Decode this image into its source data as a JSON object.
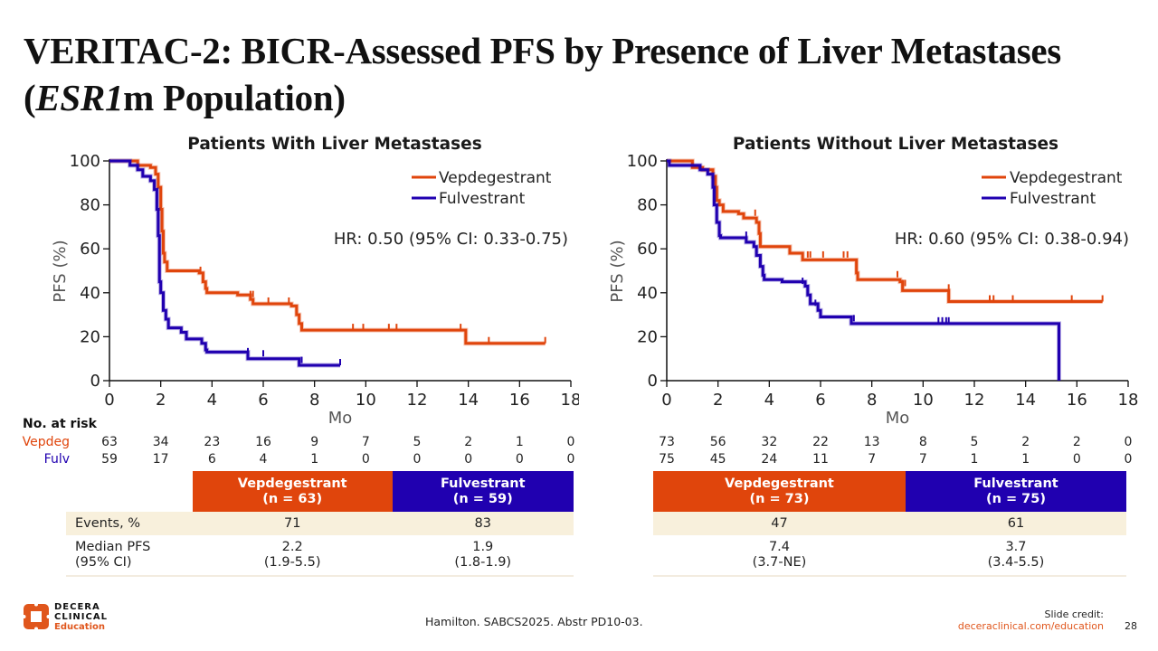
{
  "slide": {
    "title_part1": "VERITAC-2: BICR-Assessed PFS by Presence of Liver Metastases",
    "title_paren_open": "(",
    "title_italic": "ESR1",
    "title_part2": "m Population)",
    "citation": "Hamilton. SABCS2025. Abstr PD10-03.",
    "credit_label": "Slide credit:",
    "credit_link": "deceraclinical.com/education",
    "page_number": "28",
    "logo": {
      "line1": "DECERA",
      "line2": "CLINICAL",
      "line3": "Education"
    }
  },
  "colors": {
    "vepdegestrant": "#e0450c",
    "fulvestrant": "#2000b0",
    "events_row_bg": "#f8f0dc"
  },
  "risk_table": {
    "heading": "No. at risk",
    "vep_label": "Vepdeg",
    "fulv_label": "Fulv"
  },
  "chart_data": [
    {
      "type": "line",
      "subtype": "kaplan-meier",
      "title": "Patients With Liver Metastases",
      "xlabel": "Mo",
      "ylabel": "PFS (%)",
      "xlim": [
        0,
        18
      ],
      "ylim": [
        0,
        100
      ],
      "xticks": [
        "0",
        "2",
        "4",
        "6",
        "8",
        "10",
        "12",
        "14",
        "16",
        "18"
      ],
      "yticks": [
        "0",
        "20",
        "40",
        "60",
        "80",
        "100"
      ],
      "legend": [
        "Vepdegestrant",
        "Fulvestrant"
      ],
      "legend_position": "top-right",
      "annotation": "HR: 0.50 (95% CI: 0.33-0.75)",
      "series": [
        {
          "name": "Vepdegestrant",
          "steps": [
            [
              0,
              100
            ],
            [
              1.1,
              98
            ],
            [
              1.6,
              97
            ],
            [
              1.8,
              94
            ],
            [
              1.9,
              88
            ],
            [
              2.0,
              78
            ],
            [
              2.05,
              68
            ],
            [
              2.1,
              58
            ],
            [
              2.15,
              54
            ],
            [
              2.25,
              50
            ],
            [
              3.5,
              49
            ],
            [
              3.65,
              45
            ],
            [
              3.75,
              42
            ],
            [
              3.8,
              40
            ],
            [
              5.0,
              39
            ],
            [
              5.5,
              37
            ],
            [
              5.6,
              35
            ],
            [
              7.1,
              34
            ],
            [
              7.3,
              30
            ],
            [
              7.4,
              26
            ],
            [
              7.5,
              23
            ],
            [
              13.9,
              17
            ],
            [
              17.0,
              17
            ]
          ],
          "censor": [
            [
              3.55,
              49
            ],
            [
              5.5,
              38
            ],
            [
              5.6,
              38
            ],
            [
              6.2,
              35
            ],
            [
              7.0,
              35
            ],
            [
              9.5,
              23
            ],
            [
              9.9,
              23
            ],
            [
              10.9,
              23
            ],
            [
              11.2,
              23
            ],
            [
              13.7,
              23
            ],
            [
              14.8,
              17
            ],
            [
              17.0,
              17
            ]
          ]
        },
        {
          "name": "Fulvestrant",
          "steps": [
            [
              0,
              100
            ],
            [
              0.8,
              98
            ],
            [
              1.1,
              96
            ],
            [
              1.3,
              93
            ],
            [
              1.6,
              91
            ],
            [
              1.75,
              87
            ],
            [
              1.85,
              78
            ],
            [
              1.9,
              66
            ],
            [
              1.95,
              45
            ],
            [
              2.0,
              40
            ],
            [
              2.1,
              32
            ],
            [
              2.2,
              28
            ],
            [
              2.3,
              24
            ],
            [
              2.8,
              22
            ],
            [
              3.0,
              19
            ],
            [
              3.6,
              17
            ],
            [
              3.75,
              14
            ],
            [
              3.8,
              13
            ],
            [
              5.4,
              10
            ],
            [
              7.4,
              7
            ],
            [
              9.0,
              7
            ]
          ],
          "censor": [
            [
              5.4,
              12
            ],
            [
              6.0,
              11
            ],
            [
              7.5,
              8
            ],
            [
              9.0,
              7
            ]
          ]
        }
      ],
      "at_risk": {
        "times": [
          0,
          2,
          4,
          6,
          8,
          10,
          12,
          14,
          16,
          18
        ],
        "Vepdegestrant": [
          63,
          34,
          23,
          16,
          9,
          7,
          5,
          2,
          1,
          0
        ],
        "Fulvestrant": [
          59,
          17,
          6,
          4,
          1,
          0,
          0,
          0,
          0,
          0
        ]
      },
      "summary_table": {
        "headers": [
          {
            "arm": "Vepdegestrant",
            "n": "(n = 63)"
          },
          {
            "arm": "Fulvestrant",
            "n": "(n = 59)"
          }
        ],
        "rows": [
          {
            "label": "Events, %",
            "label2": "",
            "values": [
              "71",
              "83"
            ],
            "values2": [
              "",
              ""
            ]
          },
          {
            "label": "Median PFS",
            "label2": "(95% CI)",
            "values": [
              "2.2",
              "1.9"
            ],
            "values2": [
              "(1.9-5.5)",
              "(1.8-1.9)"
            ]
          }
        ]
      }
    },
    {
      "type": "line",
      "subtype": "kaplan-meier",
      "title": "Patients Without Liver Metastases",
      "xlabel": "Mo",
      "ylabel": "PFS (%)",
      "xlim": [
        0,
        18
      ],
      "ylim": [
        0,
        100
      ],
      "xticks": [
        "0",
        "2",
        "4",
        "6",
        "8",
        "10",
        "12",
        "14",
        "16",
        "18"
      ],
      "yticks": [
        "0",
        "20",
        "40",
        "60",
        "80",
        "100"
      ],
      "legend": [
        "Vepdegestrant",
        "Fulvestrant"
      ],
      "legend_position": "top-right",
      "annotation": "HR: 0.60 (95% CI: 0.38-0.94)",
      "series": [
        {
          "name": "Vepdegestrant",
          "steps": [
            [
              0,
              100
            ],
            [
              1.0,
              97
            ],
            [
              1.4,
              96
            ],
            [
              1.8,
              93
            ],
            [
              1.9,
              88
            ],
            [
              1.95,
              82
            ],
            [
              2.05,
              80
            ],
            [
              2.2,
              77
            ],
            [
              2.8,
              76
            ],
            [
              3.0,
              74
            ],
            [
              3.5,
              72
            ],
            [
              3.6,
              67
            ],
            [
              3.65,
              61
            ],
            [
              4.4,
              61
            ],
            [
              4.8,
              58
            ],
            [
              5.3,
              55
            ],
            [
              7.3,
              55
            ],
            [
              7.4,
              49
            ],
            [
              7.45,
              46
            ],
            [
              9.1,
              45
            ],
            [
              9.2,
              41
            ],
            [
              11.0,
              36
            ],
            [
              17.0,
              36
            ]
          ],
          "censor": [
            [
              3.45,
              75
            ],
            [
              5.5,
              56
            ],
            [
              5.6,
              56
            ],
            [
              6.1,
              56
            ],
            [
              6.9,
              56
            ],
            [
              7.05,
              56
            ],
            [
              9.0,
              47
            ],
            [
              9.2,
              43
            ],
            [
              9.3,
              43
            ],
            [
              11.0,
              41
            ],
            [
              12.6,
              36
            ],
            [
              12.75,
              36
            ],
            [
              13.5,
              36
            ],
            [
              15.8,
              36
            ],
            [
              17.0,
              36
            ]
          ]
        },
        {
          "name": "Fulvestrant",
          "steps": [
            [
              0,
              100
            ],
            [
              0.1,
              98
            ],
            [
              1.0,
              98
            ],
            [
              1.3,
              96
            ],
            [
              1.6,
              94
            ],
            [
              1.8,
              88
            ],
            [
              1.85,
              80
            ],
            [
              1.95,
              72
            ],
            [
              2.05,
              66
            ],
            [
              2.1,
              65
            ],
            [
              2.6,
              65
            ],
            [
              3.1,
              63
            ],
            [
              3.4,
              61
            ],
            [
              3.5,
              57
            ],
            [
              3.65,
              52
            ],
            [
              3.75,
              48
            ],
            [
              3.8,
              46
            ],
            [
              4.5,
              45
            ],
            [
              5.4,
              43
            ],
            [
              5.5,
              39
            ],
            [
              5.6,
              35
            ],
            [
              5.9,
              32
            ],
            [
              6.0,
              29
            ],
            [
              7.2,
              26
            ],
            [
              15.3,
              0
            ]
          ],
          "censor": [
            [
              3.1,
              65
            ],
            [
              5.3,
              44
            ],
            [
              5.8,
              34
            ],
            [
              7.3,
              27
            ],
            [
              10.6,
              26
            ],
            [
              10.75,
              26
            ],
            [
              10.9,
              26
            ],
            [
              11.0,
              26
            ]
          ]
        }
      ],
      "at_risk": {
        "times": [
          0,
          2,
          4,
          6,
          8,
          10,
          12,
          14,
          16,
          18
        ],
        "Vepdegestrant": [
          73,
          56,
          32,
          22,
          13,
          8,
          5,
          2,
          2,
          0
        ],
        "Fulvestrant": [
          75,
          45,
          24,
          11,
          7,
          7,
          1,
          1,
          0,
          0
        ]
      },
      "summary_table": {
        "headers": [
          {
            "arm": "Vepdegestrant",
            "n": "(n = 73)"
          },
          {
            "arm": "Fulvestrant",
            "n": "(n = 75)"
          }
        ],
        "rows": [
          {
            "label": "",
            "label2": "",
            "values": [
              "47",
              "61"
            ],
            "values2": [
              "",
              ""
            ]
          },
          {
            "label": "",
            "label2": "",
            "values": [
              "7.4",
              "3.7"
            ],
            "values2": [
              "(3.7-NE)",
              "(3.4-5.5)"
            ]
          }
        ]
      }
    }
  ]
}
